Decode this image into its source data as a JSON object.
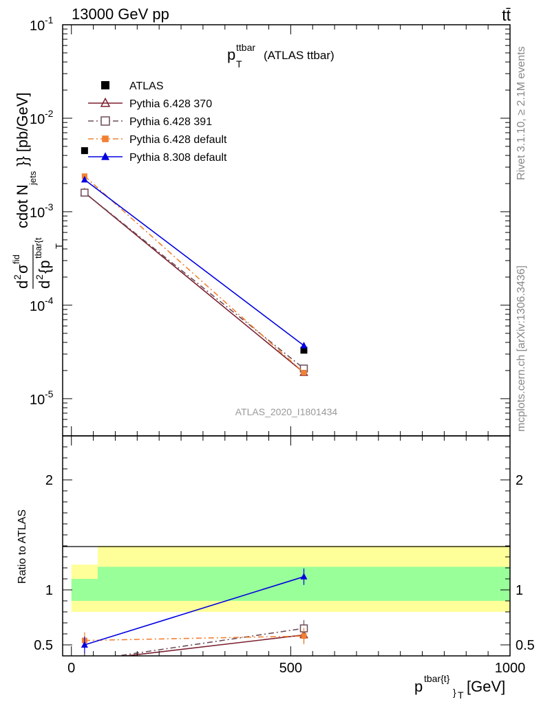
{
  "header": {
    "energy": "13000 GeV pp",
    "process": "tt̄",
    "rivet": "Rivet 3.1.10, ≥ 2.1M events",
    "mcplots": "mcplots.cern.ch [arXiv:1306.3436]"
  },
  "chart_data": [
    {
      "type": "line",
      "panel": "main",
      "title": "p_T^ttbar (ATLAS ttbar)",
      "ylabel": "d^2σ^fid / d^2{p_T^tbar{t}} cdot N_jets}} [pb/GeV]",
      "yscale": "log",
      "ylim": [
        4e-06,
        0.1
      ],
      "xlim": [
        -20,
        1000
      ],
      "watermark": "ATLAS_2020_I1801434",
      "legend_position": "top-left",
      "y_tick_labels": [
        "10^-1",
        "10^-2",
        "10^-3",
        "10^-4",
        "10^-5"
      ],
      "series": [
        {
          "name": "ATLAS",
          "color": "#000000",
          "marker": "filled-square",
          "line": "none",
          "x": [
            30,
            530
          ],
          "y": [
            0.0045,
            3.3e-05
          ]
        },
        {
          "name": "Pythia 6.428 370",
          "color": "#7b1f2e",
          "marker": "open-triangle",
          "line": "solid",
          "x": [
            30,
            530
          ],
          "y": [
            0.0016,
            1.9e-05
          ]
        },
        {
          "name": "Pythia 6.428 391",
          "color": "#6b4b55",
          "marker": "open-square",
          "line": "dash-dot",
          "x": [
            30,
            530
          ],
          "y": [
            0.0016,
            2.1e-05
          ]
        },
        {
          "name": "Pythia 6.428 default",
          "color": "#f28032",
          "marker": "filled-circle",
          "line": "dash-dot",
          "x": [
            30,
            530
          ],
          "y": [
            0.0024,
            1.9e-05
          ]
        },
        {
          "name": "Pythia 8.308 default",
          "color": "#0000e0",
          "marker": "filled-triangle",
          "line": "solid",
          "x": [
            30,
            530
          ],
          "y": [
            0.0022,
            3.7e-05
          ]
        }
      ]
    },
    {
      "type": "line",
      "panel": "ratio",
      "ylabel": "Ratio to ATLAS",
      "xlabel": "p_T^tbar{t}} [GeV]",
      "ylim": [
        0.4,
        2.4
      ],
      "xlim": [
        -20,
        1000
      ],
      "x_ticks": [
        0,
        500,
        1000
      ],
      "y_ticks": [
        0.5,
        1,
        2
      ],
      "bands": [
        {
          "x": [
            0,
            60
          ],
          "y_inner": [
            0.9,
            1.1
          ],
          "y_outer": [
            0.8,
            1.23
          ]
        },
        {
          "x": [
            60,
            1000
          ],
          "y_inner": [
            0.9,
            1.21
          ],
          "y_outer": [
            0.8,
            1.4
          ]
        }
      ],
      "series": [
        {
          "name": "Pythia 6.428 370",
          "x": [
            30,
            530
          ],
          "y": [
            0.355,
            0.59
          ]
        },
        {
          "name": "Pythia 6.428 391",
          "x": [
            30,
            530
          ],
          "y": [
            0.355,
            0.65
          ]
        },
        {
          "name": "Pythia 6.428 default",
          "x": [
            30,
            530
          ],
          "y": [
            0.54,
            0.58
          ]
        },
        {
          "name": "Pythia 8.308 default",
          "x": [
            30,
            530
          ],
          "y": [
            0.5,
            1.12
          ]
        }
      ]
    }
  ]
}
